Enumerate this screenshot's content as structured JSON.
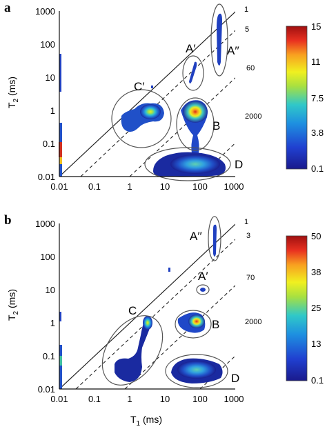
{
  "chart_data": [
    {
      "type": "heatmap",
      "panel_label": "a",
      "xlabel": "",
      "ylabel": "T2 (ms)",
      "x_scale": "log",
      "y_scale": "log",
      "xlim": [
        0.01,
        1000
      ],
      "ylim": [
        0.01,
        1000
      ],
      "x_ticks": [
        "0.01",
        "0.1",
        "1",
        "10",
        "100",
        "1000"
      ],
      "y_ticks": [
        "0.01",
        "0.1",
        "1",
        "10",
        "100",
        "1000"
      ],
      "ratio_lines": [
        {
          "label": "1",
          "ratio": 1,
          "style": "solid"
        },
        {
          "label": "5",
          "ratio": 5,
          "style": "dashed"
        },
        {
          "label": "60",
          "ratio": 60,
          "style": "dashed"
        },
        {
          "label": "2000",
          "ratio": 2000,
          "style": "dashed"
        }
      ],
      "regions": [
        {
          "label": "A′",
          "t1": 40,
          "t2": 10
        },
        {
          "label": "A′′",
          "t1": 200,
          "t2": 100
        },
        {
          "label": "B",
          "t1": 60,
          "t2": 0.5
        },
        {
          "label": "C′",
          "t1": 2,
          "t2": 0.5
        },
        {
          "label": "D",
          "t1": 60,
          "t2": 0.03
        }
      ],
      "colorbar": {
        "ticks": [
          "15",
          "11",
          "7.5",
          "3.8",
          "0.1"
        ],
        "min": 0.1,
        "max": 15
      },
      "grid": false
    },
    {
      "type": "heatmap",
      "panel_label": "b",
      "xlabel": "T1 (ms)",
      "ylabel": "T2 (ms)",
      "x_scale": "log",
      "y_scale": "log",
      "xlim": [
        0.01,
        1000
      ],
      "ylim": [
        0.01,
        1000
      ],
      "x_ticks": [
        "0.01",
        "0.1",
        "1",
        "10",
        "100",
        "1000"
      ],
      "y_ticks": [
        "0.01",
        "0.1",
        "1",
        "10",
        "100",
        "1000"
      ],
      "ratio_lines": [
        {
          "label": "1",
          "ratio": 1,
          "style": "solid"
        },
        {
          "label": "3",
          "ratio": 3,
          "style": "dashed"
        },
        {
          "label": "70",
          "ratio": 70,
          "style": "dashed"
        },
        {
          "label": "2000",
          "ratio": 2000,
          "style": "dashed"
        }
      ],
      "regions": [
        {
          "label": "A′′",
          "t1": 180,
          "t2": 150
        },
        {
          "label": "A′",
          "t1": 80,
          "t2": 9
        },
        {
          "label": "B",
          "t1": 70,
          "t2": 0.8
        },
        {
          "label": "C",
          "t1": 1.5,
          "t2": 0.15
        },
        {
          "label": "D",
          "t1": 70,
          "t2": 0.03
        }
      ],
      "colorbar": {
        "ticks": [
          "50",
          "38",
          "25",
          "13",
          "0.1"
        ],
        "min": 0.1,
        "max": 50
      },
      "grid": false
    }
  ]
}
